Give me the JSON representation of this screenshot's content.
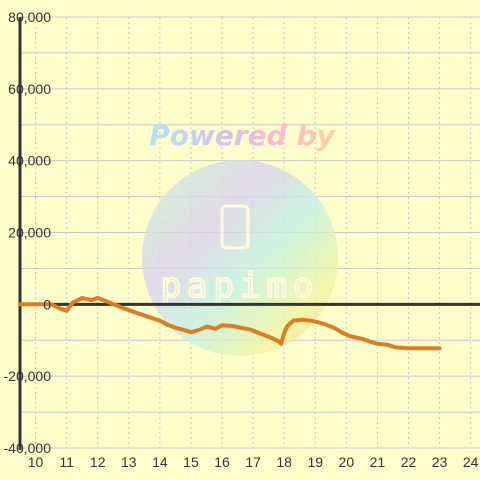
{
  "watermark": {
    "text": "Powered by",
    "logo_text": "papimo"
  },
  "colors": {
    "background": "#ffffcc",
    "grid": "#c8c8c8",
    "axis": "#333333",
    "zero_line": "#333333",
    "series": "#e07b24"
  },
  "chart_data": {
    "type": "line",
    "title": "",
    "xlabel": "",
    "ylabel": "",
    "xlim": [
      9.5,
      24.3
    ],
    "ylim": [
      -40000,
      80000
    ],
    "x_ticks": [
      10,
      11,
      12,
      13,
      14,
      15,
      16,
      17,
      18,
      19,
      20,
      21,
      22,
      23,
      24
    ],
    "y_ticks": [
      80000,
      60000,
      40000,
      20000,
      0,
      -20000,
      -40000
    ],
    "x_tick_labels": [
      "10",
      "11",
      "12",
      "13",
      "14",
      "15",
      "16",
      "17",
      "18",
      "19",
      "20",
      "21",
      "22",
      "23",
      "24"
    ],
    "y_tick_labels": [
      "80,000",
      "60,000",
      "40,000",
      "20,000",
      "0",
      "-20,000",
      "-40,000"
    ],
    "grid": true,
    "series": [
      {
        "x": [
          9.5,
          10.5,
          10.8,
          11.0,
          11.2,
          11.5,
          11.8,
          12.0,
          12.3,
          12.8,
          13.3,
          13.8,
          14.0,
          14.2,
          14.5,
          14.8,
          15.0,
          15.3,
          15.5,
          15.8,
          16.0,
          16.3,
          16.6,
          16.9,
          17.2,
          17.5,
          17.8,
          17.9,
          18.0,
          18.1,
          18.3,
          18.6,
          18.9,
          19.1,
          19.3,
          19.6,
          19.9,
          20.1,
          20.3,
          20.5,
          20.8,
          21.0,
          21.3,
          21.6,
          22.0,
          22.5,
          23.0
        ],
        "y": [
          0,
          0,
          -1200,
          -1800,
          500,
          1800,
          1200,
          1800,
          800,
          -1000,
          -2500,
          -4000,
          -4500,
          -5500,
          -6500,
          -7200,
          -7800,
          -7000,
          -6200,
          -6800,
          -5800,
          -6000,
          -6500,
          -7000,
          -8000,
          -9000,
          -10200,
          -11000,
          -8000,
          -6000,
          -4500,
          -4300,
          -4600,
          -5000,
          -5500,
          -6500,
          -8000,
          -8800,
          -9200,
          -9600,
          -10500,
          -11000,
          -11200,
          -12000,
          -12200,
          -12200,
          -12200
        ]
      }
    ]
  }
}
